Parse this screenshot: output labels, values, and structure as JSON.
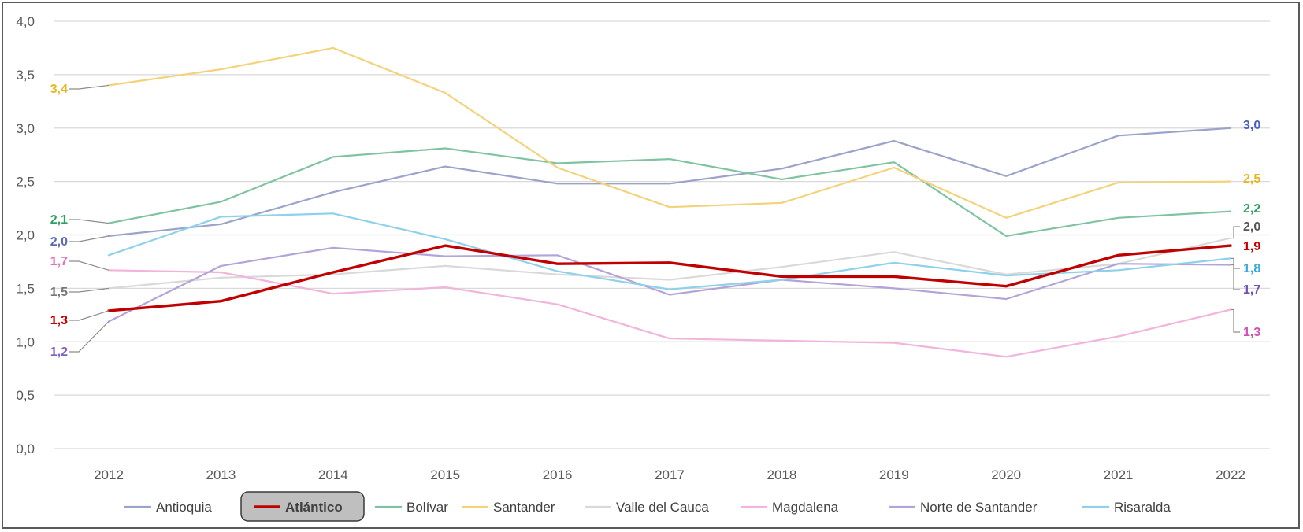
{
  "chart_data": {
    "type": "line",
    "title": "",
    "xlabel": "",
    "ylabel": "",
    "categories": [
      "2012",
      "2013",
      "2014",
      "2015",
      "2016",
      "2017",
      "2018",
      "2019",
      "2020",
      "2021",
      "2022"
    ],
    "ylim": [
      0,
      4
    ],
    "yticks": [
      "0,0",
      "0,5",
      "1,0",
      "1,5",
      "2,0",
      "2,5",
      "3,0",
      "3,5",
      "4,0"
    ],
    "grid": true,
    "legend_position": "bottom",
    "highlighted_series": "Atlántico",
    "series": [
      {
        "name": "Antioquia",
        "color": "#9aa3c9",
        "values": [
          1.99,
          2.1,
          2.4,
          2.64,
          2.48,
          2.48,
          2.62,
          2.88,
          2.55,
          2.93,
          3.0
        ],
        "start_label": "2,0",
        "start_label_color": "#5b6cb0",
        "end_label": "3,0",
        "end_label_color": "#4b5ec0"
      },
      {
        "name": "Atlántico",
        "color": "#c00000",
        "values": [
          1.29,
          1.38,
          1.65,
          1.9,
          1.73,
          1.74,
          1.61,
          1.61,
          1.52,
          1.81,
          1.9
        ],
        "start_label": "1,3",
        "start_label_color": "#c00000",
        "end_label": "1,9",
        "end_label_color": "#c00000"
      },
      {
        "name": "Bolívar",
        "color": "#7fc3a0",
        "values": [
          2.11,
          2.31,
          2.73,
          2.81,
          2.67,
          2.71,
          2.52,
          2.68,
          1.99,
          2.16,
          2.22
        ],
        "start_label": "2,1",
        "start_label_color": "#2fa060",
        "end_label": "2,2",
        "end_label_color": "#2fa060"
      },
      {
        "name": "Santander",
        "color": "#f3d27a",
        "values": [
          3.4,
          3.55,
          3.75,
          3.33,
          2.63,
          2.26,
          2.3,
          2.63,
          2.16,
          2.49,
          2.5
        ],
        "start_label": "3,4",
        "start_label_color": "#e6b820",
        "end_label": "2,5",
        "end_label_color": "#e6b820"
      },
      {
        "name": "Valle del Cauca",
        "color": "#d9d9d9",
        "values": [
          1.5,
          1.6,
          1.63,
          1.71,
          1.63,
          1.58,
          1.7,
          1.84,
          1.63,
          1.73,
          1.97
        ],
        "start_label": "1,5",
        "start_label_color": "#777777",
        "end_label": "2,0",
        "end_label_color": "#555555"
      },
      {
        "name": "Magdalena",
        "color": "#f1b4dc",
        "values": [
          1.67,
          1.65,
          1.45,
          1.51,
          1.35,
          1.03,
          1.01,
          0.99,
          0.86,
          1.05,
          1.3
        ],
        "start_label": "1,7",
        "start_label_color": "#e070c0",
        "end_label": "1,3",
        "end_label_color": "#d050b0"
      },
      {
        "name": "Norte de Santander",
        "color": "#b4a3d9",
        "values": [
          1.19,
          1.71,
          1.88,
          1.8,
          1.81,
          1.44,
          1.58,
          1.5,
          1.4,
          1.73,
          1.72
        ],
        "start_label": "1,2",
        "start_label_color": "#8060c0",
        "end_label": "1,7",
        "end_label_color": "#7050b0"
      },
      {
        "name": "Risaralda",
        "color": "#8fd0ea",
        "values": [
          1.81,
          2.17,
          2.2,
          1.96,
          1.66,
          1.49,
          1.58,
          1.74,
          1.62,
          1.67,
          1.78
        ],
        "start_label": "",
        "start_label_color": "#3aa8d8",
        "end_label": "1,8",
        "end_label_color": "#3aa8d8"
      }
    ]
  }
}
